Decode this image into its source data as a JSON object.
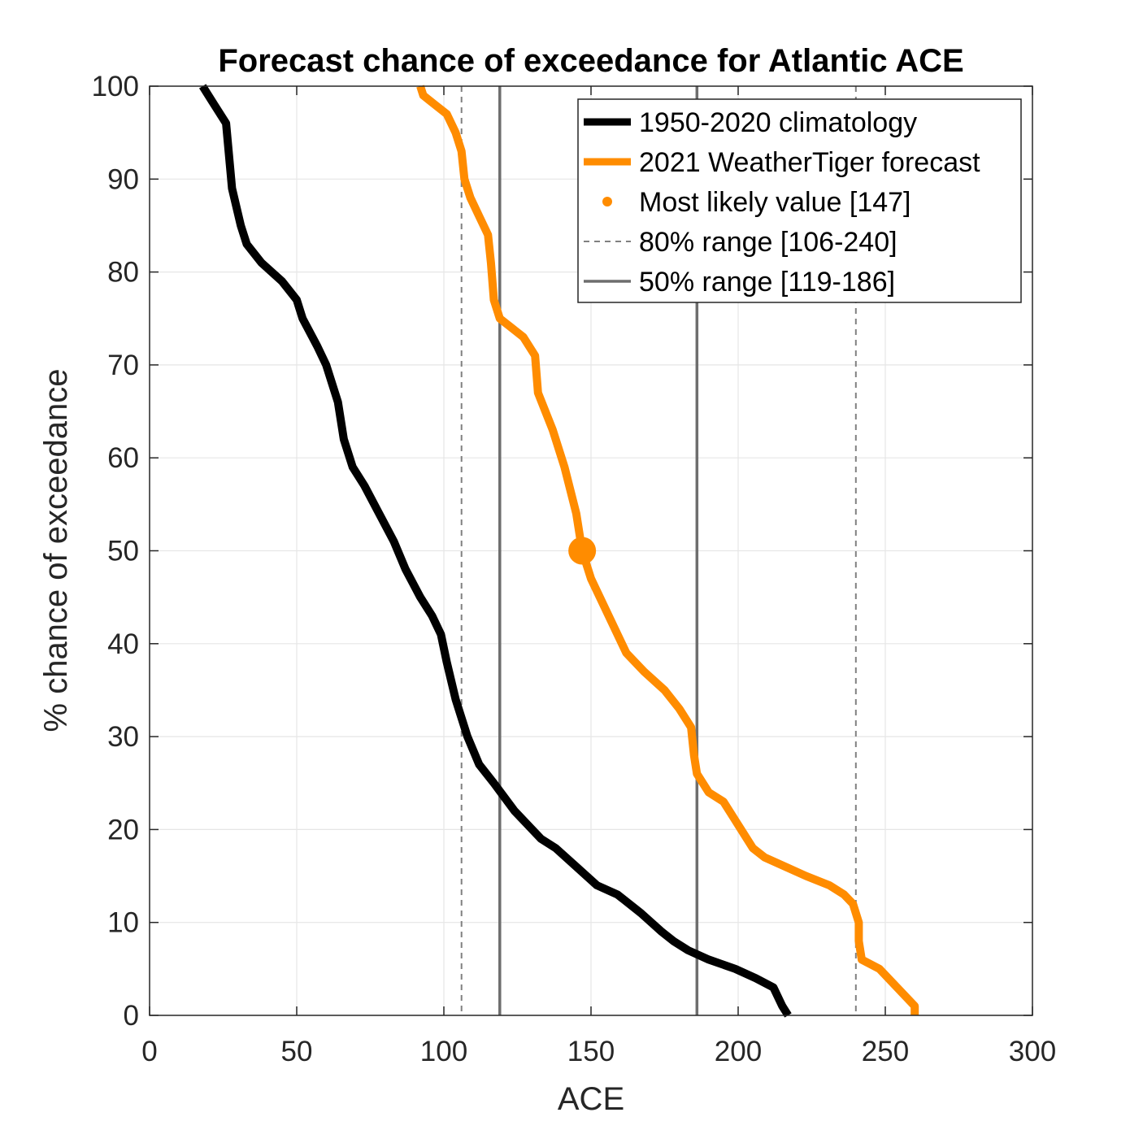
{
  "chart_data": {
    "type": "line",
    "title": "Forecast chance of exceedance for Atlantic ACE",
    "xlabel": "ACE",
    "ylabel": "% chance of exceedance",
    "xlim": [
      0,
      300
    ],
    "ylim": [
      0,
      100
    ],
    "xticks": [
      0,
      50,
      100,
      150,
      200,
      250,
      300
    ],
    "yticks": [
      0,
      10,
      20,
      30,
      40,
      50,
      60,
      70,
      80,
      90,
      100
    ],
    "grid": true,
    "legend_position": "top-right",
    "series": [
      {
        "name": "1950-2020 climatology",
        "color": "#000000",
        "points": [
          [
            18,
            100
          ],
          [
            22,
            98
          ],
          [
            26,
            96
          ],
          [
            28,
            89
          ],
          [
            31,
            85
          ],
          [
            33,
            83
          ],
          [
            38,
            81
          ],
          [
            45,
            79
          ],
          [
            50,
            77
          ],
          [
            52,
            75
          ],
          [
            57,
            72
          ],
          [
            60,
            70
          ],
          [
            64,
            66
          ],
          [
            66,
            62
          ],
          [
            69,
            59
          ],
          [
            73,
            57
          ],
          [
            78,
            54
          ],
          [
            83,
            51
          ],
          [
            87,
            48
          ],
          [
            92,
            45
          ],
          [
            96,
            43
          ],
          [
            99,
            41
          ],
          [
            101,
            38
          ],
          [
            104,
            34
          ],
          [
            108,
            30
          ],
          [
            112,
            27
          ],
          [
            117,
            25
          ],
          [
            124,
            22
          ],
          [
            133,
            19
          ],
          [
            138,
            18
          ],
          [
            145,
            16
          ],
          [
            152,
            14
          ],
          [
            159,
            13
          ],
          [
            167,
            11
          ],
          [
            174,
            9
          ],
          [
            178,
            8
          ],
          [
            183,
            7
          ],
          [
            190,
            6
          ],
          [
            199,
            5
          ],
          [
            206,
            4
          ],
          [
            212,
            3
          ],
          [
            215,
            1
          ],
          [
            217,
            0
          ]
        ]
      },
      {
        "name": "2021 WeatherTiger forecast",
        "color": "#ff8c00",
        "points": [
          [
            92,
            100
          ],
          [
            93,
            99
          ],
          [
            97,
            98
          ],
          [
            101,
            97
          ],
          [
            104,
            95
          ],
          [
            106,
            93
          ],
          [
            107,
            90
          ],
          [
            109,
            88
          ],
          [
            112,
            86
          ],
          [
            115,
            84
          ],
          [
            116,
            81
          ],
          [
            117,
            77
          ],
          [
            119,
            75
          ],
          [
            123,
            74
          ],
          [
            127,
            73
          ],
          [
            131,
            71
          ],
          [
            132,
            67
          ],
          [
            137,
            63
          ],
          [
            141,
            59
          ],
          [
            145,
            54
          ],
          [
            147,
            50
          ],
          [
            150,
            47
          ],
          [
            156,
            43
          ],
          [
            162,
            39
          ],
          [
            168,
            37
          ],
          [
            175,
            35
          ],
          [
            180,
            33
          ],
          [
            184,
            31
          ],
          [
            185,
            28
          ],
          [
            186,
            26
          ],
          [
            190,
            24
          ],
          [
            195,
            23
          ],
          [
            199,
            21
          ],
          [
            205,
            18
          ],
          [
            209,
            17
          ],
          [
            216,
            16
          ],
          [
            223,
            15
          ],
          [
            231,
            14
          ],
          [
            236,
            13
          ],
          [
            239,
            12
          ],
          [
            240,
            11
          ],
          [
            241,
            10
          ],
          [
            241,
            8
          ],
          [
            242,
            6
          ],
          [
            248,
            5
          ],
          [
            254,
            3
          ],
          [
            257,
            2
          ],
          [
            260,
            1
          ],
          [
            260,
            0
          ]
        ]
      }
    ],
    "markers": [
      {
        "name": "Most likely value [147]",
        "x": 147,
        "y": 50,
        "color": "#ff8c00"
      }
    ],
    "reference_lines": [
      {
        "name": "80% range [106-240]",
        "values": [
          106,
          240
        ],
        "style": "dashed",
        "color": "#808080"
      },
      {
        "name": "50% range [119-186]",
        "values": [
          119,
          186
        ],
        "style": "solid",
        "color": "#6e6e6e"
      }
    ]
  }
}
